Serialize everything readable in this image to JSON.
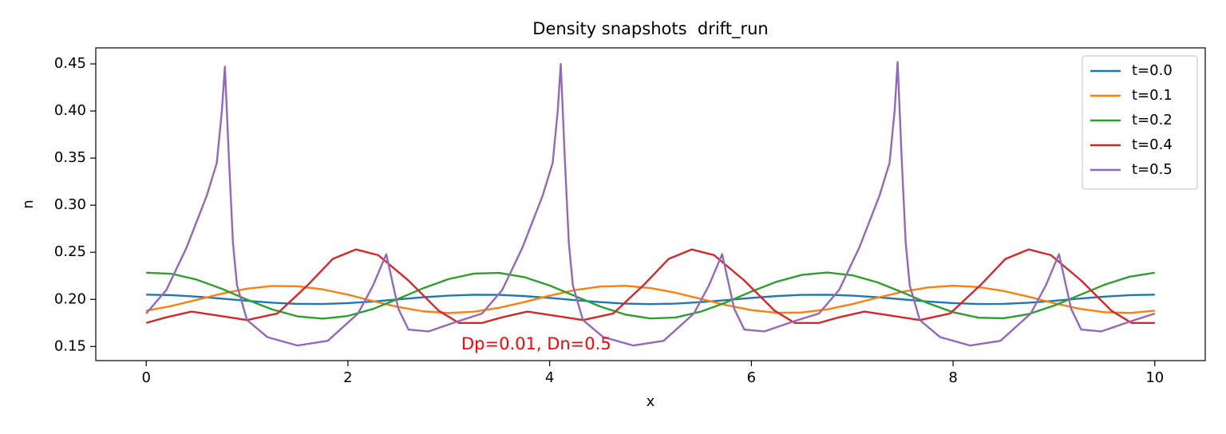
{
  "chart_data": {
    "type": "line",
    "title": "Density snapshots  drift_run",
    "xlabel": "x",
    "ylabel": "n",
    "annotation": "Dp=0.01, Dn=0.5",
    "annotation_color": "#ff0000",
    "xlim": [
      -0.5,
      10.5
    ],
    "ylim": [
      0.135,
      0.467
    ],
    "xticks": [
      0,
      2,
      4,
      6,
      8,
      10
    ],
    "yticks": [
      0.15,
      {
        "value": 0.2,
        "label": "0.20"
      },
      0.25,
      {
        "value": 0.3,
        "label": "0.30"
      },
      0.35,
      {
        "value": 0.4,
        "label": "0.40"
      },
      0.45
    ],
    "legend": "upper right",
    "series": [
      {
        "name": "t=0.0",
        "color": "#1f77b4",
        "x": [
          0,
          0.25,
          0.5,
          0.75,
          1,
          1.25,
          1.5,
          1.75,
          2,
          2.25,
          2.5,
          2.75,
          3,
          3.25,
          3.5,
          3.75,
          4,
          4.25,
          4.5,
          4.75,
          5,
          5.25,
          5.5,
          5.75,
          6,
          6.25,
          6.5,
          6.75,
          7,
          7.25,
          7.5,
          7.75,
          8,
          8.25,
          8.5,
          8.75,
          9,
          9.25,
          9.5,
          9.75,
          10
        ],
        "values": [
          0.205,
          0.2045,
          0.2029,
          0.2008,
          0.1985,
          0.1965,
          0.1952,
          0.1951,
          0.196,
          0.1977,
          0.2,
          0.2023,
          0.204,
          0.2049,
          0.2048,
          0.2035,
          0.2015,
          0.1992,
          0.1971,
          0.1955,
          0.195,
          0.1955,
          0.1971,
          0.1992,
          0.2015,
          0.2035,
          0.2048,
          0.2049,
          0.204,
          0.2023,
          0.2,
          0.1977,
          0.196,
          0.1951,
          0.1952,
          0.1965,
          0.1985,
          0.2008,
          0.2029,
          0.2045,
          0.205
        ]
      },
      {
        "name": "t=0.1",
        "color": "#ff7f0e",
        "x": [
          0,
          0.25,
          0.5,
          0.75,
          1,
          1.25,
          1.5,
          1.75,
          2,
          2.25,
          2.5,
          2.75,
          3,
          3.25,
          3.5,
          3.75,
          4,
          4.25,
          4.5,
          4.75,
          5,
          5.25,
          5.5,
          5.75,
          6,
          6.25,
          6.5,
          6.75,
          7,
          7.25,
          7.5,
          7.75,
          8,
          8.25,
          8.5,
          8.75,
          9,
          9.25,
          9.5,
          9.75,
          10
        ],
        "values": [
          0.188,
          0.193,
          0.1995,
          0.2061,
          0.2114,
          0.2142,
          0.2139,
          0.2106,
          0.205,
          0.1982,
          0.1919,
          0.1873,
          0.1855,
          0.1869,
          0.1911,
          0.1972,
          0.204,
          0.2099,
          0.2136,
          0.2144,
          0.212,
          0.207,
          0.2005,
          0.1939,
          0.1886,
          0.1858,
          0.1861,
          0.1894,
          0.195,
          0.2018,
          0.2081,
          0.2127,
          0.2145,
          0.2131,
          0.2089,
          0.2028,
          0.196,
          0.1901,
          0.1864,
          0.1856,
          0.188
        ]
      },
      {
        "name": "t=0.2",
        "color": "#2ca02c",
        "x": [
          0,
          0.25,
          0.5,
          0.75,
          1,
          1.25,
          1.5,
          1.75,
          2,
          2.25,
          2.5,
          2.75,
          3,
          3.25,
          3.5,
          3.75,
          4,
          4.25,
          4.5,
          4.75,
          5,
          5.25,
          5.5,
          5.75,
          6,
          6.25,
          6.5,
          6.75,
          7,
          7.25,
          7.5,
          7.75,
          8,
          8.25,
          8.5,
          8.75,
          9,
          9.25,
          9.5,
          9.75,
          10
        ],
        "values": [
          0.2283,
          0.2272,
          0.221,
          0.2112,
          0.1997,
          0.1893,
          0.182,
          0.1795,
          0.1824,
          0.1899,
          0.2006,
          0.212,
          0.2216,
          0.2274,
          0.2281,
          0.2236,
          0.2147,
          0.2036,
          0.1925,
          0.1839,
          0.1797,
          0.1808,
          0.187,
          0.1968,
          0.2083,
          0.2187,
          0.226,
          0.2285,
          0.2256,
          0.2181,
          0.2074,
          0.196,
          0.1864,
          0.1806,
          0.1799,
          0.1844,
          0.1933,
          0.2044,
          0.2155,
          0.2241,
          0.2283
        ]
      },
      {
        "name": "t=0.4",
        "color": "#d62728",
        "x": [
          0,
          0.2,
          0.45,
          0.7,
          1,
          1.3,
          1.6,
          1.85,
          2.08,
          2.3,
          2.6,
          2.9,
          3.1,
          3.33,
          3.53,
          3.78,
          4.03,
          4.33,
          4.63,
          4.93,
          5.18,
          5.41,
          5.63,
          5.93,
          6.23,
          6.43,
          6.67,
          6.87,
          7.12,
          7.37,
          7.67,
          7.97,
          8.27,
          8.52,
          8.75,
          8.97,
          9.27,
          9.57,
          9.77,
          10
        ],
        "values": [
          0.175,
          0.181,
          0.187,
          0.183,
          0.178,
          0.185,
          0.215,
          0.243,
          0.253,
          0.247,
          0.22,
          0.188,
          0.175,
          0.175,
          0.181,
          0.187,
          0.183,
          0.178,
          0.185,
          0.215,
          0.243,
          0.253,
          0.247,
          0.22,
          0.188,
          0.175,
          0.175,
          0.181,
          0.187,
          0.183,
          0.178,
          0.185,
          0.215,
          0.243,
          0.253,
          0.247,
          0.22,
          0.188,
          0.175,
          0.175
        ]
      },
      {
        "name": "t=0.5",
        "color": "#9467bd",
        "x": [
          0,
          0.2,
          0.4,
          0.6,
          0.7,
          0.75,
          0.78,
          0.82,
          0.86,
          0.9,
          1,
          1.2,
          1.5,
          1.8,
          2.1,
          2.25,
          2.38,
          2.5,
          2.6,
          2.8,
          3.1,
          3.33,
          3.53,
          3.73,
          3.93,
          4.03,
          4.08,
          4.11,
          4.15,
          4.19,
          4.23,
          4.33,
          4.53,
          4.83,
          5.13,
          5.43,
          5.58,
          5.71,
          5.83,
          5.93,
          6.13,
          6.43,
          6.67,
          6.87,
          7.07,
          7.27,
          7.37,
          7.42,
          7.45,
          7.49,
          7.53,
          7.57,
          7.67,
          7.87,
          8.17,
          8.47,
          8.77,
          8.92,
          9.05,
          9.17,
          9.27,
          9.47,
          9.77,
          10
        ],
        "values": [
          0.185,
          0.21,
          0.255,
          0.31,
          0.345,
          0.4,
          0.447,
          0.35,
          0.26,
          0.215,
          0.178,
          0.16,
          0.151,
          0.156,
          0.185,
          0.215,
          0.248,
          0.19,
          0.168,
          0.166,
          0.177,
          0.185,
          0.21,
          0.255,
          0.31,
          0.345,
          0.4,
          0.45,
          0.35,
          0.26,
          0.215,
          0.178,
          0.16,
          0.151,
          0.156,
          0.185,
          0.215,
          0.248,
          0.19,
          0.168,
          0.166,
          0.177,
          0.185,
          0.21,
          0.255,
          0.31,
          0.345,
          0.4,
          0.452,
          0.35,
          0.26,
          0.215,
          0.178,
          0.16,
          0.151,
          0.156,
          0.185,
          0.215,
          0.248,
          0.19,
          0.168,
          0.166,
          0.177,
          0.185
        ]
      }
    ]
  }
}
